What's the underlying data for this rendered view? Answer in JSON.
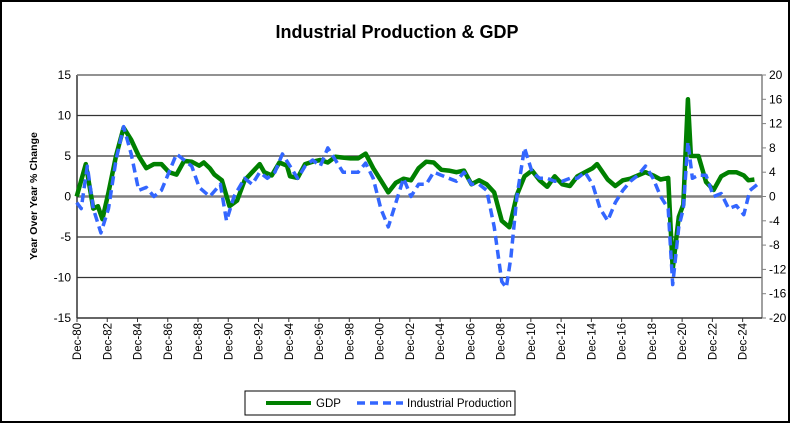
{
  "chart_data": {
    "type": "line",
    "title": "Industrial Production & GDP",
    "ylabel": "Year  Over Year  %  Change",
    "y2label": "",
    "ylim": [
      -15,
      15
    ],
    "yticks": [
      15,
      10,
      5,
      0,
      -5,
      -10,
      -15
    ],
    "y2lim": [
      -20,
      20
    ],
    "y2ticks": [
      20,
      16,
      12,
      8,
      4,
      0,
      -4,
      -8,
      -12,
      -16,
      -20
    ],
    "xlim": [
      1980.92,
      2026.2
    ],
    "xtick_labels": [
      "Dec-80",
      "Dec-82",
      "Dec-84",
      "Dec-86",
      "Dec-88",
      "Dec-90",
      "Dec-92",
      "Dec-94",
      "Dec-96",
      "Dec-98",
      "Dec-00",
      "Dec-02",
      "Dec-04",
      "Dec-06",
      "Dec-08",
      "Dec-10",
      "Dec-12",
      "Dec-14",
      "Dec-16",
      "Dec-18",
      "Dec-20",
      "Dec-22",
      "Dec-24"
    ],
    "grid": true,
    "legend_placement": "bottom",
    "series": [
      {
        "name": "GDP",
        "axis": "left",
        "color": "#008000",
        "style": "solid",
        "points": [
          [
            1980.9,
            0
          ],
          [
            1981.5,
            4
          ],
          [
            1982.0,
            -1.5
          ],
          [
            1982.3,
            -1.2
          ],
          [
            1982.6,
            -2.8
          ],
          [
            1983.0,
            0.5
          ],
          [
            1983.5,
            5
          ],
          [
            1984.0,
            8.5
          ],
          [
            1984.5,
            7
          ],
          [
            1985.0,
            5
          ],
          [
            1985.5,
            3.5
          ],
          [
            1986,
            4
          ],
          [
            1986.5,
            4
          ],
          [
            1987,
            3
          ],
          [
            1987.5,
            2.7
          ],
          [
            1988,
            4.4
          ],
          [
            1988.5,
            4.3
          ],
          [
            1989,
            3.8
          ],
          [
            1989.3,
            4.2
          ],
          [
            1989.7,
            3.5
          ],
          [
            1990,
            2.7
          ],
          [
            1990.5,
            2.0
          ],
          [
            1991,
            -1.2
          ],
          [
            1991.5,
            -0.5
          ],
          [
            1992,
            2
          ],
          [
            1992.5,
            3
          ],
          [
            1993,
            4
          ],
          [
            1993.3,
            3
          ],
          [
            1993.8,
            2.6
          ],
          [
            1994.3,
            4.2
          ],
          [
            1994.8,
            3.8
          ],
          [
            1995,
            2.5
          ],
          [
            1995.5,
            2.3
          ],
          [
            1996,
            4
          ],
          [
            1996.5,
            4.3
          ],
          [
            1997,
            4.5
          ],
          [
            1997.5,
            4.2
          ],
          [
            1998,
            4.9
          ],
          [
            1998.5,
            4.8
          ],
          [
            1999,
            4.7
          ],
          [
            1999.5,
            4.7
          ],
          [
            2000,
            5.3
          ],
          [
            2000.5,
            3.5
          ],
          [
            2001,
            2
          ],
          [
            2001.5,
            0.5
          ],
          [
            2002,
            1.7
          ],
          [
            2002.5,
            2.2
          ],
          [
            2003,
            2.0
          ],
          [
            2003.5,
            3.5
          ],
          [
            2004,
            4.3
          ],
          [
            2004.5,
            4.2
          ],
          [
            2005,
            3.3
          ],
          [
            2005.5,
            3.2
          ],
          [
            2006,
            3.0
          ],
          [
            2006.5,
            3.2
          ],
          [
            2007,
            1.5
          ],
          [
            2007.5,
            2.0
          ],
          [
            2008,
            1.5
          ],
          [
            2008.5,
            0.5
          ],
          [
            2009,
            -3
          ],
          [
            2009.5,
            -3.8
          ],
          [
            2010,
            0.2
          ],
          [
            2010.5,
            2.5
          ],
          [
            2011,
            3.2
          ],
          [
            2011.5,
            2
          ],
          [
            2012,
            1.2
          ],
          [
            2012.5,
            2.5
          ],
          [
            2013,
            1.5
          ],
          [
            2013.5,
            1.3
          ],
          [
            2014,
            2.5
          ],
          [
            2014.5,
            3
          ],
          [
            2015,
            3.5
          ],
          [
            2015.3,
            4
          ],
          [
            2016,
            2.1
          ],
          [
            2016.5,
            1.3
          ],
          [
            2017,
            2
          ],
          [
            2017.5,
            2.2
          ],
          [
            2018,
            2.6
          ],
          [
            2018.5,
            3
          ],
          [
            2019,
            2.6
          ],
          [
            2019.5,
            2.1
          ],
          [
            2020.0,
            2.3
          ],
          [
            2020.3,
            -9
          ],
          [
            2020.7,
            -2.5
          ],
          [
            2021.0,
            -1
          ],
          [
            2021.3,
            12
          ],
          [
            2021.5,
            5
          ],
          [
            2022.0,
            5
          ],
          [
            2022.5,
            1.8
          ],
          [
            2023.0,
            0.8
          ],
          [
            2023.5,
            2.5
          ],
          [
            2024.0,
            3
          ],
          [
            2024.5,
            3
          ],
          [
            2025.0,
            2.6
          ],
          [
            2025.3,
            2
          ],
          [
            2025.7,
            2.1
          ]
        ]
      },
      {
        "name": "Industrial Production",
        "axis": "right",
        "color": "#3366ff",
        "style": "dashed",
        "points": [
          [
            1980.9,
            -1
          ],
          [
            1981.2,
            -2
          ],
          [
            1981.6,
            5
          ],
          [
            1982,
            -2
          ],
          [
            1982.5,
            -6
          ],
          [
            1983,
            -2
          ],
          [
            1983.5,
            6
          ],
          [
            1984,
            11.5
          ],
          [
            1984.5,
            7
          ],
          [
            1985,
            1
          ],
          [
            1985.5,
            1.5
          ],
          [
            1986,
            0
          ],
          [
            1986.5,
            1
          ],
          [
            1987,
            4
          ],
          [
            1987.5,
            7
          ],
          [
            1988,
            6
          ],
          [
            1988.5,
            5
          ],
          [
            1989,
            1.5
          ],
          [
            1989.7,
            0
          ],
          [
            1990.4,
            2
          ],
          [
            1990.8,
            -4
          ],
          [
            1991.3,
            0
          ],
          [
            1992,
            3
          ],
          [
            1992.5,
            2
          ],
          [
            1993,
            4
          ],
          [
            1993.5,
            3
          ],
          [
            1994,
            4
          ],
          [
            1994.5,
            7
          ],
          [
            1995,
            5
          ],
          [
            1995.5,
            3
          ],
          [
            1996,
            5
          ],
          [
            1996.5,
            6
          ],
          [
            1997,
            5
          ],
          [
            1997.5,
            8
          ],
          [
            1998,
            6
          ],
          [
            1998.5,
            4
          ],
          [
            1999,
            4
          ],
          [
            1999.5,
            4
          ],
          [
            2000,
            5.5
          ],
          [
            2000.5,
            3
          ],
          [
            2001,
            -2
          ],
          [
            2001.5,
            -5
          ],
          [
            2002,
            -1
          ],
          [
            2002.5,
            3
          ],
          [
            2003,
            0
          ],
          [
            2003.5,
            2
          ],
          [
            2004,
            2
          ],
          [
            2004.5,
            4
          ],
          [
            2005,
            3.5
          ],
          [
            2005.5,
            3
          ],
          [
            2006,
            2.5
          ],
          [
            2006.5,
            4
          ],
          [
            2007,
            2
          ],
          [
            2007.5,
            2
          ],
          [
            2008,
            1
          ],
          [
            2008.5,
            -5
          ],
          [
            2009,
            -14
          ],
          [
            2009.3,
            -15
          ],
          [
            2009.6,
            -10
          ],
          [
            2010,
            0
          ],
          [
            2010.5,
            8
          ],
          [
            2011,
            4
          ],
          [
            2011.5,
            3
          ],
          [
            2012,
            3
          ],
          [
            2012.5,
            2.5
          ],
          [
            2013,
            2.5
          ],
          [
            2013.5,
            3
          ],
          [
            2014,
            3
          ],
          [
            2014.5,
            4
          ],
          [
            2015,
            2
          ],
          [
            2015.5,
            -2
          ],
          [
            2016,
            -4
          ],
          [
            2016.5,
            -1
          ],
          [
            2017,
            1
          ],
          [
            2017.5,
            2.5
          ],
          [
            2018,
            3.5
          ],
          [
            2018.5,
            5
          ],
          [
            2019,
            3
          ],
          [
            2019.5,
            0
          ],
          [
            2020,
            -2
          ],
          [
            2020.3,
            -14.5
          ],
          [
            2020.7,
            -5
          ],
          [
            2021.0,
            -2
          ],
          [
            2021.3,
            9
          ],
          [
            2021.6,
            3
          ],
          [
            2022.0,
            3.5
          ],
          [
            2022.5,
            3.5
          ],
          [
            2023.0,
            0
          ],
          [
            2023.5,
            0.5
          ],
          [
            2024,
            -2
          ],
          [
            2024.5,
            -1.5
          ],
          [
            2025,
            -3
          ],
          [
            2025.4,
            1
          ],
          [
            2025.9,
            2
          ]
        ]
      }
    ]
  }
}
